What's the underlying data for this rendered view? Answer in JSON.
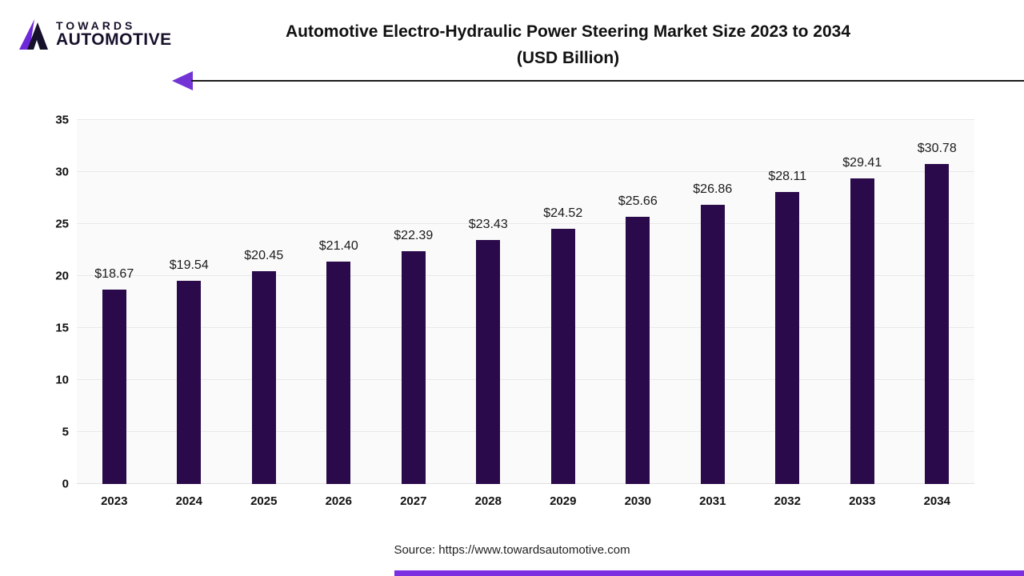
{
  "brand": {
    "top": "TOWARDS",
    "bottom": "AUTOMOTIVE"
  },
  "title_line1": "Automotive Electro-Hydraulic Power Steering Market Size 2023 to 2034",
  "title_line2": "(USD Billion)",
  "source": "Source: https://www.towardsautomotive.com",
  "colors": {
    "bar": "#2a0a4a",
    "accent_purple": "#7c2fe0",
    "grid": "#e8e8e8",
    "plot_background": "#fafafa",
    "rule_line": "#1a1a1a"
  },
  "chart_data": {
    "type": "bar",
    "title": "Automotive Electro-Hydraulic Power Steering Market Size 2023 to 2034 (USD Billion)",
    "categories": [
      "2023",
      "2024",
      "2025",
      "2026",
      "2027",
      "2028",
      "2029",
      "2030",
      "2031",
      "2032",
      "2033",
      "2034"
    ],
    "values": [
      18.67,
      19.54,
      20.45,
      21.4,
      22.39,
      23.43,
      24.52,
      25.66,
      26.86,
      28.11,
      29.41,
      30.78
    ],
    "data_labels": [
      "$18.67",
      "$19.54",
      "$20.45",
      "$21.40",
      "$22.39",
      "$23.43",
      "$24.52",
      "$25.66",
      "$26.86",
      "$28.11",
      "$29.41",
      "$30.78"
    ],
    "xlabel": "",
    "ylabel": "",
    "ylim": [
      0,
      35
    ],
    "yticks": [
      0,
      5,
      10,
      15,
      20,
      25,
      30,
      35
    ],
    "grid": true,
    "legend": "none",
    "bar_color": "#2a0a4a"
  }
}
